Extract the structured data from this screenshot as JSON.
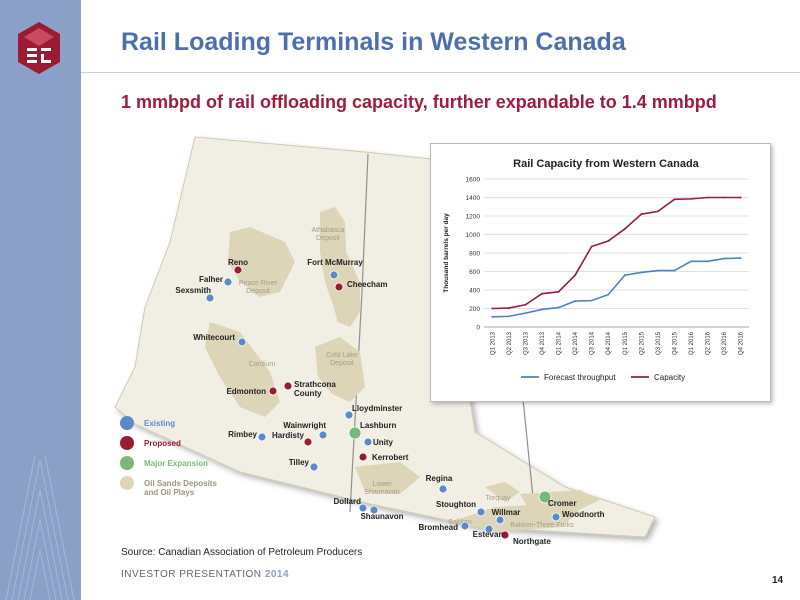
{
  "slide": {
    "title": "Rail Loading Terminals in Western Canada",
    "subtitle": "1 mmbpd of rail offloading capacity, further expandable to 1.4 mmbpd",
    "source": "Source: Canadian Association of Petroleum Producers",
    "footer_text": "INVESTOR PRESENTATION",
    "footer_year": "2014",
    "page_number": "14"
  },
  "colors": {
    "title": "#4a70ad",
    "subtitle": "#a01c3c",
    "existing": "#5b8ac9",
    "proposed": "#9b1b33",
    "major_expansion": "#7ab87a",
    "deposit": "#ddd5b8"
  },
  "map": {
    "legend": [
      {
        "key": "existing",
        "label": "Existing"
      },
      {
        "key": "proposed",
        "label": "Proposed"
      },
      {
        "key": "major",
        "label": "Major Expansion"
      },
      {
        "key": "deposit",
        "label": "Oil Sands Deposits\nand Oil Plays"
      }
    ],
    "regions": [
      "Athabasca\nDeposit",
      "Peace River\nDeposit",
      "Cold Lake\nDeposit",
      "Cardium",
      "Lower\nShaunavon",
      "Torquay",
      "Bakken",
      "Bakken-Three Forks"
    ],
    "terminals": [
      {
        "name": "Reno",
        "type": "proposed"
      },
      {
        "name": "Fort McMurray",
        "type": "existing"
      },
      {
        "name": "Falher",
        "type": "existing"
      },
      {
        "name": "Cheecham",
        "type": "proposed"
      },
      {
        "name": "Sexsmith",
        "type": "existing"
      },
      {
        "name": "Whitecourt",
        "type": "existing"
      },
      {
        "name": "Strathcona\nCounty",
        "type": "proposed"
      },
      {
        "name": "Edmonton",
        "type": "proposed"
      },
      {
        "name": "Lloydminster",
        "type": "existing"
      },
      {
        "name": "Wainwright",
        "type": "existing"
      },
      {
        "name": "Lashburn",
        "type": "major"
      },
      {
        "name": "Rimbey",
        "type": "existing"
      },
      {
        "name": "Hardisty",
        "type": "proposed"
      },
      {
        "name": "Unity",
        "type": "existing"
      },
      {
        "name": "Kerrobert",
        "type": "proposed"
      },
      {
        "name": "Tilley",
        "type": "existing"
      },
      {
        "name": "Regina",
        "type": "existing"
      },
      {
        "name": "Dollard",
        "type": "existing"
      },
      {
        "name": "Shaunavon",
        "type": "existing"
      },
      {
        "name": "Stoughton",
        "type": "existing"
      },
      {
        "name": "Cromer",
        "type": "major"
      },
      {
        "name": "Willmar",
        "type": "existing"
      },
      {
        "name": "Woodnorth",
        "type": "existing"
      },
      {
        "name": "Bromhead",
        "type": "existing"
      },
      {
        "name": "Estevan",
        "type": "existing"
      },
      {
        "name": "Northgate",
        "type": "proposed"
      }
    ]
  },
  "chart_data": {
    "type": "line",
    "title": "Rail Capacity from Western Canada",
    "ylabel": "Thousand barrels per day",
    "xlabel": "",
    "ylim": [
      0,
      1600
    ],
    "yticks": [
      0,
      200,
      400,
      600,
      800,
      1000,
      1200,
      1400,
      1600
    ],
    "grid": true,
    "legend_position": "bottom",
    "categories": [
      "Q1 2013",
      "Q2 2013",
      "Q3 2013",
      "Q4 2013",
      "Q1 2014",
      "Q2 2014",
      "Q3 2014",
      "Q4 2014",
      "Q1 2015",
      "Q2 2015",
      "Q3 2015",
      "Q4 2015",
      "Q1 2016",
      "Q2 2016",
      "Q3 2016",
      "Q4 2016"
    ],
    "series": [
      {
        "name": "Forecast throughput",
        "color": "#4f81bd",
        "values": [
          110,
          115,
          150,
          190,
          210,
          280,
          285,
          350,
          560,
          590,
          610,
          610,
          710,
          710,
          740,
          745
        ]
      },
      {
        "name": "Capacity",
        "color": "#9b1b3c",
        "values": [
          200,
          205,
          240,
          360,
          380,
          560,
          870,
          930,
          1060,
          1220,
          1250,
          1380,
          1385,
          1400,
          1400,
          1400
        ]
      }
    ]
  }
}
